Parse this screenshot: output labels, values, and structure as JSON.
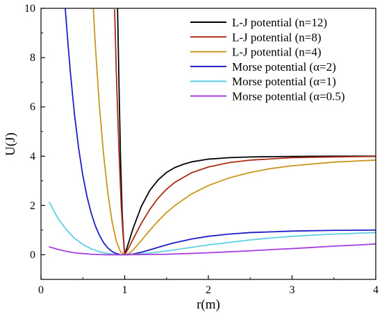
{
  "chart_data": {
    "type": "line",
    "xlabel": "r(m)",
    "ylabel": "U(J)",
    "xlim": [
      0,
      4
    ],
    "ylim": [
      -1,
      10
    ],
    "x_ticks": [
      0,
      1,
      2,
      3,
      4
    ],
    "x_tick_labels": [
      "0",
      "1",
      "2",
      "3",
      "4"
    ],
    "y_ticks": [
      0,
      2,
      4,
      6,
      8,
      10
    ],
    "y_tick_labels": [
      "0",
      "2",
      "4",
      "6",
      "8",
      "10"
    ],
    "grid": false,
    "legend_position": "top-right",
    "series": [
      {
        "name": "L-J potential (n=12)",
        "color": "#000000",
        "points": [
          [
            0.915,
            10
          ],
          [
            0.93,
            7.3
          ],
          [
            0.95,
            3.98
          ],
          [
            0.97,
            1.71
          ],
          [
            0.985,
            0.71
          ],
          [
            1.0,
            0
          ],
          [
            1.05,
            0.52
          ],
          [
            1.1,
            1.07
          ],
          [
            1.2,
            1.97
          ],
          [
            1.3,
            2.61
          ],
          [
            1.4,
            3.04
          ],
          [
            1.5,
            3.34
          ],
          [
            1.6,
            3.54
          ],
          [
            1.7,
            3.67
          ],
          [
            1.8,
            3.77
          ],
          [
            2.0,
            3.88
          ],
          [
            2.25,
            3.94
          ],
          [
            2.5,
            3.97
          ],
          [
            3.0,
            3.99
          ],
          [
            3.5,
            4.0
          ],
          [
            4.0,
            4.0
          ]
        ]
      },
      {
        "name": "L-J potential (n=8)",
        "color": "#aa2a14",
        "points": [
          [
            0.88,
            9.94
          ],
          [
            0.9,
            7.4
          ],
          [
            0.93,
            4.36
          ],
          [
            0.96,
            1.91
          ],
          [
            0.98,
            0.84
          ],
          [
            1.0,
            0
          ],
          [
            1.05,
            0.29
          ],
          [
            1.1,
            0.63
          ],
          [
            1.2,
            1.28
          ],
          [
            1.3,
            1.84
          ],
          [
            1.4,
            2.3
          ],
          [
            1.5,
            2.66
          ],
          [
            1.6,
            2.94
          ],
          [
            1.8,
            3.33
          ],
          [
            2.0,
            3.56
          ],
          [
            2.25,
            3.74
          ],
          [
            2.5,
            3.84
          ],
          [
            3.0,
            3.94
          ],
          [
            3.5,
            3.97
          ],
          [
            4.0,
            3.99
          ]
        ]
      },
      {
        "name": "L-J potential (n=4)",
        "color": "#c8961a",
        "points": [
          [
            0.625,
            10
          ],
          [
            0.65,
            8.47
          ],
          [
            0.7,
            5.95
          ],
          [
            0.75,
            4.0
          ],
          [
            0.8,
            2.48
          ],
          [
            0.85,
            1.33
          ],
          [
            0.9,
            0.56
          ],
          [
            0.95,
            0.12
          ],
          [
            1.0,
            0
          ],
          [
            1.05,
            0.05
          ],
          [
            1.1,
            0.19
          ],
          [
            1.2,
            0.58
          ],
          [
            1.3,
            0.99
          ],
          [
            1.4,
            1.37
          ],
          [
            1.5,
            1.71
          ],
          [
            1.6,
            2.0
          ],
          [
            1.8,
            2.47
          ],
          [
            2.0,
            2.81
          ],
          [
            2.25,
            3.12
          ],
          [
            2.5,
            3.34
          ],
          [
            2.75,
            3.5
          ],
          [
            3.0,
            3.61
          ],
          [
            3.5,
            3.76
          ],
          [
            4.0,
            3.84
          ]
        ]
      },
      {
        "name": "Morse potential (α=2)",
        "color": "#1c1cc8",
        "points": [
          [
            0.29,
            10
          ],
          [
            0.32,
            8.68
          ],
          [
            0.35,
            7.45
          ],
          [
            0.4,
            5.71
          ],
          [
            0.45,
            4.32
          ],
          [
            0.5,
            3.22
          ],
          [
            0.55,
            2.36
          ],
          [
            0.6,
            1.69
          ],
          [
            0.65,
            1.17
          ],
          [
            0.7,
            0.78
          ],
          [
            0.75,
            0.48
          ],
          [
            0.8,
            0.27
          ],
          [
            0.85,
            0.13
          ],
          [
            0.9,
            0.05
          ],
          [
            0.95,
            0.01
          ],
          [
            1.0,
            0
          ],
          [
            1.1,
            0.03
          ],
          [
            1.2,
            0.1
          ],
          [
            1.3,
            0.2
          ],
          [
            1.4,
            0.3
          ],
          [
            1.5,
            0.4
          ],
          [
            1.6,
            0.49
          ],
          [
            1.8,
            0.64
          ],
          [
            2.0,
            0.75
          ],
          [
            2.25,
            0.84
          ],
          [
            2.5,
            0.9
          ],
          [
            3.0,
            0.96
          ],
          [
            3.5,
            0.99
          ],
          [
            4.0,
            1.0
          ]
        ]
      },
      {
        "name": "Morse potential (α=1)",
        "color": "#5ccfe6",
        "points": [
          [
            0.1,
            2.13
          ],
          [
            0.2,
            1.49
          ],
          [
            0.3,
            1.03
          ],
          [
            0.4,
            0.67
          ],
          [
            0.5,
            0.42
          ],
          [
            0.6,
            0.24
          ],
          [
            0.7,
            0.12
          ],
          [
            0.8,
            0.05
          ],
          [
            0.9,
            0.01
          ],
          [
            1.0,
            0
          ],
          [
            1.2,
            0.03
          ],
          [
            1.4,
            0.11
          ],
          [
            1.6,
            0.2
          ],
          [
            1.8,
            0.3
          ],
          [
            2.0,
            0.4
          ],
          [
            2.25,
            0.5
          ],
          [
            2.5,
            0.6
          ],
          [
            2.75,
            0.68
          ],
          [
            3.0,
            0.75
          ],
          [
            3.5,
            0.84
          ],
          [
            4.0,
            0.9
          ]
        ]
      },
      {
        "name": "Morse potential (α=0.5)",
        "color": "#a83ee0",
        "points": [
          [
            0.1,
            0.32
          ],
          [
            0.2,
            0.22
          ],
          [
            0.3,
            0.14
          ],
          [
            0.4,
            0.08
          ],
          [
            0.5,
            0.05
          ],
          [
            0.6,
            0.02
          ],
          [
            0.7,
            0.01
          ],
          [
            0.8,
            0.0
          ],
          [
            1.0,
            0
          ],
          [
            1.25,
            0.01
          ],
          [
            1.5,
            0.02
          ],
          [
            1.75,
            0.05
          ],
          [
            2.0,
            0.08
          ],
          [
            2.25,
            0.12
          ],
          [
            2.5,
            0.16
          ],
          [
            2.75,
            0.21
          ],
          [
            3.0,
            0.25
          ],
          [
            3.25,
            0.3
          ],
          [
            3.5,
            0.35
          ],
          [
            3.75,
            0.39
          ],
          [
            4.0,
            0.44
          ]
        ]
      }
    ]
  }
}
